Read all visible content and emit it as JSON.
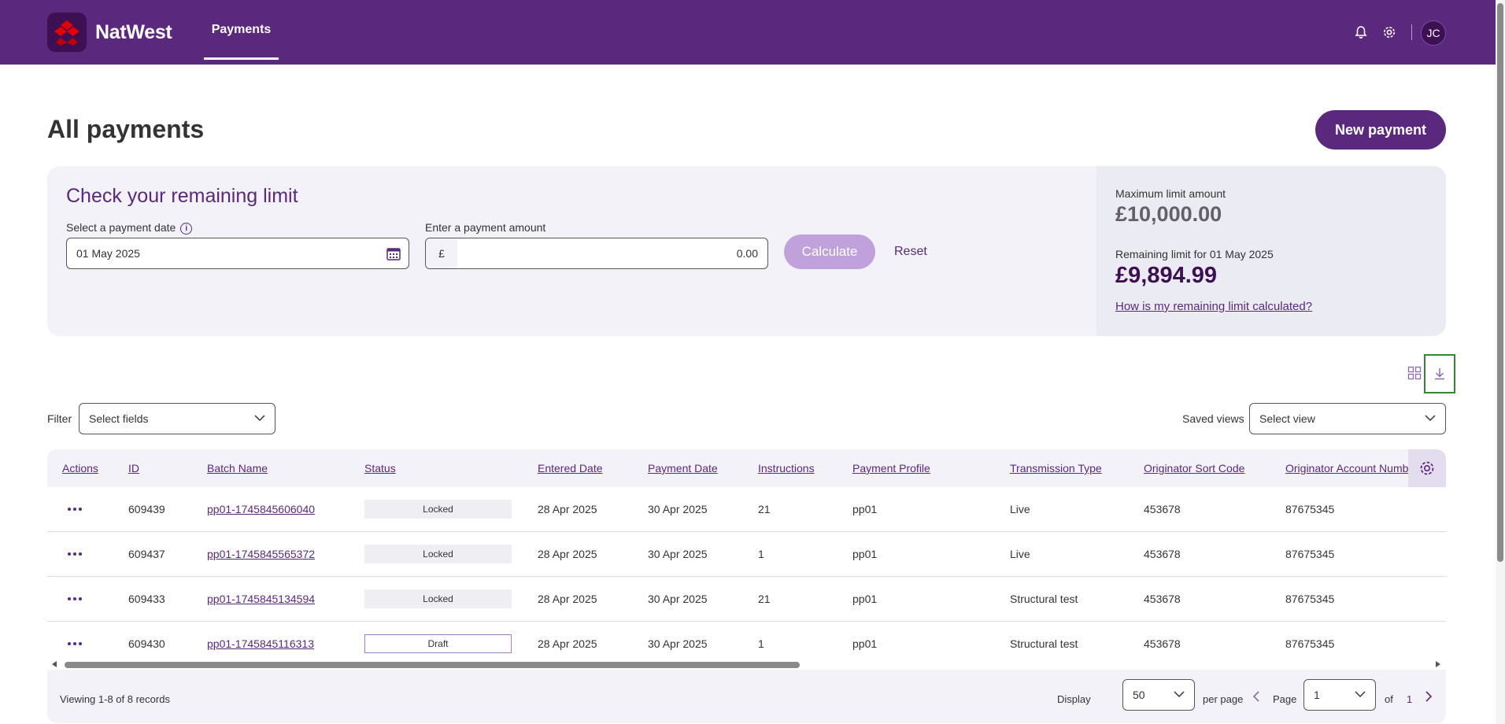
{
  "header": {
    "brand": "NatWest",
    "nav_tab": "Payments",
    "avatar_initials": "JC",
    "icons": [
      "bell-icon",
      "gear-icon"
    ],
    "brand_color": "#5a287d"
  },
  "page": {
    "title": "All payments",
    "new_payment_label": "New payment"
  },
  "limit": {
    "heading": "Check your remaining limit",
    "date_label": "Select a payment date",
    "date_value": "01 May 2025",
    "amount_label": "Enter a payment amount",
    "currency": "£",
    "amount_value": "0.00",
    "calculate_label": "Calculate",
    "reset_label": "Reset",
    "max_label": "Maximum limit amount",
    "max_value": "£10,000.00",
    "remaining_label": "Remaining limit for 01 May 2025",
    "remaining_value": "£9,894.99",
    "help_link": "How is my remaining limit calculated?"
  },
  "toolbar": {
    "filter_label": "Filter",
    "filter_placeholder": "Select fields",
    "saved_views_label": "Saved views",
    "saved_views_placeholder": "Select view"
  },
  "table": {
    "columns": [
      "Actions",
      "ID",
      "Batch Name",
      "Status",
      "Entered Date",
      "Payment Date",
      "Instructions",
      "Payment Profile",
      "Transmission Type",
      "Originator Sort Code",
      "Originator Account Numb"
    ],
    "rows": [
      {
        "id": "609439",
        "batch": "pp01-1745845606040",
        "status": "Locked",
        "entered": "28 Apr 2025",
        "payment": "30 Apr 2025",
        "instructions": "21",
        "profile": "pp01",
        "transmission": "Live",
        "sort_code": "453678",
        "account": "87675345"
      },
      {
        "id": "609437",
        "batch": "pp01-1745845565372",
        "status": "Locked",
        "entered": "28 Apr 2025",
        "payment": "30 Apr 2025",
        "instructions": "1",
        "profile": "pp01",
        "transmission": "Live",
        "sort_code": "453678",
        "account": "87675345"
      },
      {
        "id": "609433",
        "batch": "pp01-1745845134594",
        "status": "Locked",
        "entered": "28 Apr 2025",
        "payment": "30 Apr 2025",
        "instructions": "21",
        "profile": "pp01",
        "transmission": "Structural test",
        "sort_code": "453678",
        "account": "87675345"
      },
      {
        "id": "609430",
        "batch": "pp01-1745845116313",
        "status": "Draft",
        "entered": "28 Apr 2025",
        "payment": "30 Apr 2025",
        "instructions": "1",
        "profile": "pp01",
        "transmission": "Structural test",
        "sort_code": "453678",
        "account": "87675345"
      }
    ]
  },
  "footer": {
    "viewing": "Viewing 1-8 of 8 records",
    "display_label": "Display",
    "per_page_value": "50",
    "per_page_label": "per page",
    "page_label": "Page",
    "page_value": "1",
    "of_label": "of",
    "total_pages": "1"
  }
}
